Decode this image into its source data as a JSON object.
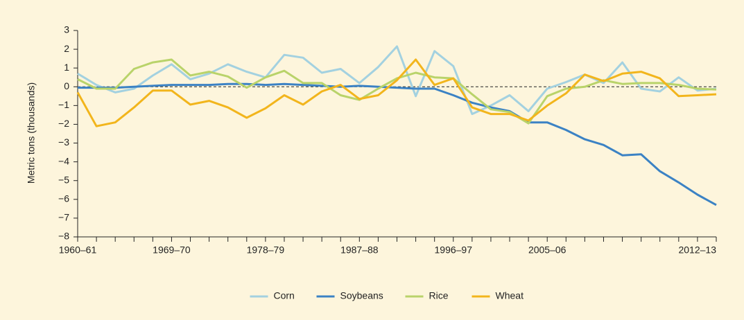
{
  "chart_data": {
    "type": "line",
    "y_label": "Metric tons (thousands)",
    "categories": [
      "1960–61",
      null,
      null,
      null,
      null,
      "1969–70",
      null,
      null,
      null,
      null,
      "1978–79",
      null,
      null,
      null,
      null,
      "1987–88",
      null,
      null,
      null,
      null,
      "1996–97",
      null,
      null,
      null,
      null,
      "2005–06",
      null,
      null,
      null,
      null,
      null,
      null,
      null,
      null,
      "2012–13"
    ],
    "series": [
      {
        "name": "Corn",
        "color": "#a3d1e0",
        "values": [
          0.7,
          0.1,
          -0.3,
          -0.1,
          0.6,
          1.2,
          0.4,
          0.7,
          1.2,
          0.8,
          0.5,
          1.7,
          1.55,
          0.75,
          0.95,
          0.2,
          1.05,
          2.15,
          -0.5,
          1.9,
          1.1,
          -1.45,
          -1.0,
          -0.45,
          -1.3,
          -0.1,
          0.25,
          0.65,
          0.2,
          1.3,
          -0.1,
          -0.25,
          0.5,
          -0.2,
          -0.1
        ]
      },
      {
        "name": "Soybeans",
        "color": "#3b82c4",
        "values": [
          -0.05,
          -0.05,
          -0.05,
          0,
          0.05,
          0.1,
          0.1,
          0.1,
          0.15,
          0.15,
          0.1,
          0.15,
          0.1,
          0.05,
          0,
          0.05,
          0,
          -0.05,
          -0.1,
          -0.1,
          -0.45,
          -0.85,
          -1.1,
          -1.3,
          -1.9,
          -1.9,
          -2.3,
          -2.8,
          -3.1,
          -3.65,
          -3.6,
          -4.5,
          -5.1,
          -5.75,
          -6.3
        ]
      },
      {
        "name": "Rice",
        "color": "#b9d36a",
        "values": [
          0.4,
          -0.1,
          -0.1,
          0.95,
          1.3,
          1.45,
          0.6,
          0.8,
          0.55,
          -0.05,
          0.5,
          0.85,
          0.2,
          0.2,
          -0.45,
          -0.7,
          -0.1,
          0.45,
          0.75,
          0.5,
          0.45,
          -0.4,
          -1.2,
          -1.35,
          -1.95,
          -0.5,
          -0.1,
          0,
          0.35,
          0.15,
          0.2,
          0.2,
          0.1,
          -0.1,
          -0.15
        ]
      },
      {
        "name": "Wheat",
        "color": "#f2b51c",
        "values": [
          -0.3,
          -2.1,
          -1.9,
          -1.1,
          -0.2,
          -0.2,
          -0.95,
          -0.75,
          -1.1,
          -1.65,
          -1.15,
          -0.45,
          -0.95,
          -0.25,
          0.1,
          -0.65,
          -0.45,
          0.35,
          1.45,
          0.1,
          0.45,
          -1.1,
          -1.45,
          -1.45,
          -1.8,
          -1.0,
          -0.35,
          0.65,
          0.3,
          0.7,
          0.8,
          0.45,
          -0.5,
          -0.45,
          -0.4
        ]
      }
    ],
    "ylim": [
      -8,
      3
    ],
    "yticks": [
      {
        "value": -8,
        "label": "−8"
      },
      {
        "value": -7,
        "label": "−7"
      },
      {
        "value": -6,
        "label": "−6"
      },
      {
        "value": -5,
        "label": "−5"
      },
      {
        "value": -4,
        "label": "−4"
      },
      {
        "value": -3,
        "label": "−3"
      },
      {
        "value": -2,
        "label": "−2"
      },
      {
        "value": -1,
        "label": "−1"
      },
      0,
      1,
      2,
      3
    ],
    "reference_line": 0,
    "legend": "bottom"
  }
}
